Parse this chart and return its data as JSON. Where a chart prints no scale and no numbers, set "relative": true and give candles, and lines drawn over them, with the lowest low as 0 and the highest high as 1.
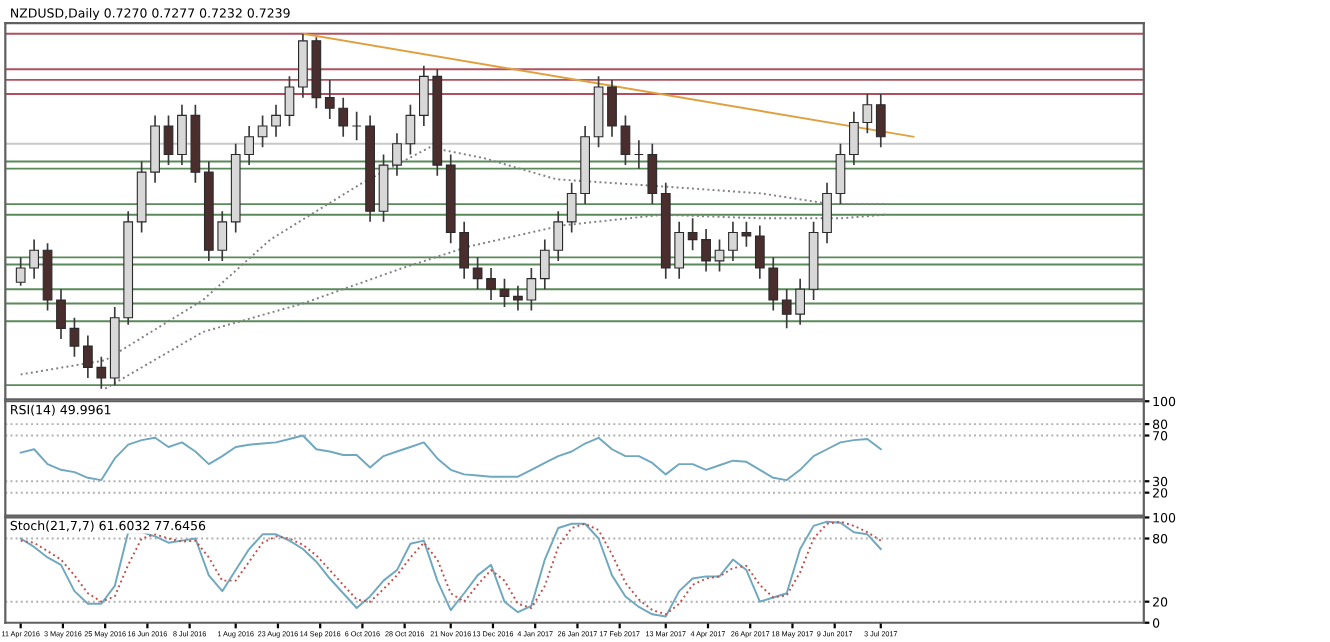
{
  "chart_data": [
    {
      "type": "candlestick",
      "title": "NZDUSD,Daily 0.7270 0.7277 0.7232 0.7239",
      "relative": true,
      "tick_labels": false,
      "x": [
        "2016-04-11",
        "2016-04-18",
        "2016-04-25",
        "2016-05-02",
        "2016-05-09",
        "2016-05-16",
        "2016-05-23",
        "2016-05-30",
        "2016-06-06",
        "2016-06-13",
        "2016-06-20",
        "2016-06-27",
        "2016-07-04",
        "2016-07-11",
        "2016-07-18",
        "2016-07-25",
        "2016-08-01",
        "2016-08-08",
        "2016-08-15",
        "2016-08-22",
        "2016-08-29",
        "2016-09-05",
        "2016-09-12",
        "2016-09-19",
        "2016-09-26",
        "2016-10-03",
        "2016-10-10",
        "2016-10-17",
        "2016-10-24",
        "2016-10-31",
        "2016-11-07",
        "2016-11-14",
        "2016-11-21",
        "2016-11-28",
        "2016-12-05",
        "2016-12-12",
        "2016-12-19",
        "2016-12-26",
        "2017-01-02",
        "2017-01-09",
        "2017-01-16",
        "2017-01-23",
        "2017-01-30",
        "2017-02-06",
        "2017-02-13",
        "2017-02-20",
        "2017-02-27",
        "2017-03-06",
        "2017-03-13",
        "2017-03-20",
        "2017-03-27",
        "2017-04-03",
        "2017-04-10",
        "2017-04-17",
        "2017-04-24",
        "2017-05-01",
        "2017-05-08",
        "2017-05-15",
        "2017-05-22",
        "2017-05-29",
        "2017-06-05",
        "2017-06-12",
        "2017-06-19",
        "2017-06-26",
        "2017-07-03"
      ],
      "ohlc": [
        [
          0.3,
          0.37,
          0.29,
          0.34
        ],
        [
          0.34,
          0.42,
          0.31,
          0.39
        ],
        [
          0.39,
          0.41,
          0.22,
          0.25
        ],
        [
          0.25,
          0.28,
          0.14,
          0.17
        ],
        [
          0.17,
          0.2,
          0.09,
          0.12
        ],
        [
          0.12,
          0.15,
          0.03,
          0.06
        ],
        [
          0.06,
          0.09,
          0.0,
          0.03
        ],
        [
          0.03,
          0.23,
          0.01,
          0.2
        ],
        [
          0.2,
          0.5,
          0.18,
          0.47
        ],
        [
          0.47,
          0.64,
          0.44,
          0.61
        ],
        [
          0.61,
          0.77,
          0.58,
          0.74
        ],
        [
          0.74,
          0.77,
          0.63,
          0.66
        ],
        [
          0.66,
          0.8,
          0.63,
          0.77
        ],
        [
          0.77,
          0.8,
          0.58,
          0.61
        ],
        [
          0.61,
          0.64,
          0.36,
          0.39
        ],
        [
          0.39,
          0.5,
          0.36,
          0.47
        ],
        [
          0.47,
          0.69,
          0.44,
          0.66
        ],
        [
          0.66,
          0.74,
          0.63,
          0.71
        ],
        [
          0.71,
          0.77,
          0.68,
          0.74
        ],
        [
          0.74,
          0.8,
          0.71,
          0.77
        ],
        [
          0.77,
          0.88,
          0.74,
          0.85
        ],
        [
          0.85,
          1.0,
          0.82,
          0.98
        ],
        [
          0.98,
          0.99,
          0.79,
          0.82
        ],
        [
          0.82,
          0.87,
          0.76,
          0.79
        ],
        [
          0.79,
          0.82,
          0.71,
          0.74
        ],
        [
          0.74,
          0.78,
          0.7,
          0.74
        ],
        [
          0.74,
          0.77,
          0.47,
          0.5
        ],
        [
          0.5,
          0.66,
          0.47,
          0.63
        ],
        [
          0.63,
          0.72,
          0.6,
          0.69
        ],
        [
          0.69,
          0.8,
          0.66,
          0.77
        ],
        [
          0.77,
          0.91,
          0.74,
          0.88
        ],
        [
          0.88,
          0.9,
          0.6,
          0.63
        ],
        [
          0.63,
          0.66,
          0.41,
          0.44
        ],
        [
          0.44,
          0.47,
          0.31,
          0.34
        ],
        [
          0.34,
          0.37,
          0.28,
          0.31
        ],
        [
          0.31,
          0.34,
          0.25,
          0.28
        ],
        [
          0.28,
          0.31,
          0.23,
          0.26
        ],
        [
          0.26,
          0.29,
          0.22,
          0.25
        ],
        [
          0.25,
          0.34,
          0.22,
          0.31
        ],
        [
          0.31,
          0.42,
          0.28,
          0.39
        ],
        [
          0.39,
          0.5,
          0.36,
          0.47
        ],
        [
          0.47,
          0.58,
          0.44,
          0.55
        ],
        [
          0.55,
          0.74,
          0.52,
          0.71
        ],
        [
          0.71,
          0.88,
          0.68,
          0.85
        ],
        [
          0.85,
          0.87,
          0.71,
          0.74
        ],
        [
          0.74,
          0.77,
          0.63,
          0.66
        ],
        [
          0.66,
          0.7,
          0.62,
          0.66
        ],
        [
          0.66,
          0.69,
          0.52,
          0.55
        ],
        [
          0.55,
          0.58,
          0.31,
          0.34
        ],
        [
          0.34,
          0.47,
          0.31,
          0.44
        ],
        [
          0.44,
          0.48,
          0.39,
          0.42
        ],
        [
          0.42,
          0.45,
          0.33,
          0.36
        ],
        [
          0.36,
          0.42,
          0.33,
          0.39
        ],
        [
          0.39,
          0.47,
          0.36,
          0.44
        ],
        [
          0.44,
          0.47,
          0.4,
          0.43
        ],
        [
          0.43,
          0.46,
          0.31,
          0.34
        ],
        [
          0.34,
          0.37,
          0.22,
          0.25
        ],
        [
          0.25,
          0.28,
          0.17,
          0.21
        ],
        [
          0.21,
          0.31,
          0.18,
          0.28
        ],
        [
          0.28,
          0.47,
          0.25,
          0.44
        ],
        [
          0.44,
          0.58,
          0.41,
          0.55
        ],
        [
          0.55,
          0.69,
          0.52,
          0.66
        ],
        [
          0.66,
          0.78,
          0.63,
          0.75
        ],
        [
          0.75,
          0.83,
          0.72,
          0.8
        ],
        [
          0.8,
          0.83,
          0.68,
          0.71
        ]
      ],
      "series": [
        {
          "type": "line",
          "color": "#808080",
          "line_style": "dotted",
          "x": [
            "2016-04-11",
            "2016-05-25",
            "2016-07-15",
            "2016-08-19",
            "2016-10-06",
            "2016-11-10",
            "2016-12-08",
            "2017-01-15",
            "2017-03-11",
            "2017-05-02",
            "2017-06-07",
            "2017-07-05"
          ],
          "values": [
            0.04,
            0.08,
            0.25,
            0.42,
            0.58,
            0.68,
            0.65,
            0.59,
            0.57,
            0.55,
            0.52,
            0.52
          ]
        },
        {
          "type": "line",
          "color": "#808080",
          "line_style": "dotted",
          "x": [
            "2016-05-25",
            "2016-07-15",
            "2016-09-05",
            "2016-10-27",
            "2016-11-30",
            "2017-01-18",
            "2017-03-11",
            "2017-05-02",
            "2017-06-12",
            "2017-07-05"
          ],
          "values": [
            0.0,
            0.16,
            0.24,
            0.34,
            0.4,
            0.46,
            0.49,
            0.48,
            0.48,
            0.49
          ]
        },
        {
          "type": "line",
          "color": "#e0a040",
          "line_style": "solid",
          "x": [
            "2016-09-05",
            "2017-07-20"
          ],
          "values": [
            1.0,
            0.71
          ]
        }
      ],
      "ref_lines": [
        {
          "axis": "y",
          "value": 1.0,
          "color": "#b0505f"
        },
        {
          "axis": "y",
          "value": 0.9,
          "color": "#b0505f"
        },
        {
          "axis": "y",
          "value": 0.87,
          "color": "#b0505f"
        },
        {
          "axis": "y",
          "value": 0.83,
          "color": "#b0505f"
        },
        {
          "axis": "y",
          "value": 0.69,
          "color": "#c8c8c8"
        },
        {
          "axis": "y",
          "value": 0.64,
          "color": "#5a8a5a"
        },
        {
          "axis": "y",
          "value": 0.62,
          "color": "#5a8a5a"
        },
        {
          "axis": "y",
          "value": 0.52,
          "color": "#5a8a5a"
        },
        {
          "axis": "y",
          "value": 0.49,
          "color": "#5a8a5a"
        },
        {
          "axis": "y",
          "value": 0.37,
          "color": "#5a8a5a"
        },
        {
          "axis": "y",
          "value": 0.35,
          "color": "#5a8a5a"
        },
        {
          "axis": "y",
          "value": 0.28,
          "color": "#5a8a5a"
        },
        {
          "axis": "y",
          "value": 0.24,
          "color": "#5a8a5a"
        },
        {
          "axis": "y",
          "value": 0.19,
          "color": "#5a8a5a"
        },
        {
          "axis": "y",
          "value": 0.01,
          "color": "#5a8a5a"
        }
      ],
      "xlim": [
        "2016-04-03",
        "2017-11-17"
      ]
    },
    {
      "type": "line",
      "title": "RSI(14) 49.9961",
      "tick_labels": "y",
      "xlim": [
        "2016-04-03",
        "2017-11-17"
      ],
      "ylim": [
        0,
        100
      ],
      "yticks": [
        20,
        30,
        70,
        80,
        100
      ],
      "x": [
        "2016-04-11",
        "2016-04-18",
        "2016-04-25",
        "2016-05-02",
        "2016-05-09",
        "2016-05-16",
        "2016-05-23",
        "2016-05-30",
        "2016-06-06",
        "2016-06-13",
        "2016-06-20",
        "2016-06-27",
        "2016-07-04",
        "2016-07-11",
        "2016-07-18",
        "2016-07-25",
        "2016-08-01",
        "2016-08-08",
        "2016-08-15",
        "2016-08-22",
        "2016-08-29",
        "2016-09-05",
        "2016-09-12",
        "2016-09-19",
        "2016-09-26",
        "2016-10-03",
        "2016-10-10",
        "2016-10-17",
        "2016-10-24",
        "2016-10-31",
        "2016-11-07",
        "2016-11-14",
        "2016-11-21",
        "2016-11-28",
        "2016-12-05",
        "2016-12-12",
        "2016-12-19",
        "2016-12-26",
        "2017-01-02",
        "2017-01-09",
        "2017-01-16",
        "2017-01-23",
        "2017-01-30",
        "2017-02-06",
        "2017-02-13",
        "2017-02-20",
        "2017-02-27",
        "2017-03-06",
        "2017-03-13",
        "2017-03-20",
        "2017-03-27",
        "2017-04-03",
        "2017-04-10",
        "2017-04-17",
        "2017-04-24",
        "2017-05-01",
        "2017-05-08",
        "2017-05-15",
        "2017-05-22",
        "2017-05-29",
        "2017-06-05",
        "2017-06-12",
        "2017-06-19",
        "2017-06-26",
        "2017-07-03"
      ],
      "series": [
        {
          "color": "#6fa8bf",
          "line_style": "solid",
          "values": [
            55,
            58,
            45,
            40,
            38,
            33,
            31,
            50,
            62,
            66,
            68,
            60,
            64,
            56,
            45,
            52,
            60,
            62,
            63,
            64,
            67,
            70,
            58,
            56,
            53,
            53,
            42,
            52,
            56,
            60,
            64,
            50,
            40,
            36,
            35,
            34,
            34,
            34,
            40,
            46,
            52,
            56,
            63,
            68,
            58,
            52,
            52,
            46,
            36,
            45,
            45,
            40,
            44,
            48,
            47,
            40,
            33,
            31,
            40,
            52,
            58,
            64,
            66,
            67,
            58
          ]
        }
      ],
      "ref_lines": [
        {
          "axis": "y",
          "value": 20,
          "color": "#b0b0b0",
          "line_style": "dotted"
        },
        {
          "axis": "y",
          "value": 30,
          "color": "#b0b0b0",
          "line_style": "dotted"
        },
        {
          "axis": "y",
          "value": 70,
          "color": "#b0b0b0",
          "line_style": "dotted"
        },
        {
          "axis": "y",
          "value": 80,
          "color": "#b0b0b0",
          "line_style": "dotted"
        }
      ]
    },
    {
      "type": "line",
      "title": "Stoch(21,7,7) 61.6032 77.6456",
      "xlim": [
        "2016-04-03",
        "2017-11-17"
      ],
      "ylim": [
        0,
        100
      ],
      "yticks": [
        0,
        20,
        80,
        100
      ],
      "xticks": [
        {
          "value": "2016-04-11",
          "label": "11 Apr 2016"
        },
        {
          "value": "2016-05-03",
          "label": "3 May 2016"
        },
        {
          "value": "2016-05-25",
          "label": "25 May 2016"
        },
        {
          "value": "2016-06-16",
          "label": "16 Jun 2016"
        },
        {
          "value": "2016-07-08",
          "label": "8 Jul 2016"
        },
        {
          "value": "2016-08-01",
          "label": "1 Aug 2016"
        },
        {
          "value": "2016-08-23",
          "label": "23 Aug 2016"
        },
        {
          "value": "2016-09-14",
          "label": "14 Sep 2016"
        },
        {
          "value": "2016-10-06",
          "label": "6 Oct 2016"
        },
        {
          "value": "2016-10-28",
          "label": "28 Oct 2016"
        },
        {
          "value": "2016-11-21",
          "label": "21 Nov 2016"
        },
        {
          "value": "2016-12-13",
          "label": "13 Dec 2016"
        },
        {
          "value": "2017-01-04",
          "label": "4 Jan 2017"
        },
        {
          "value": "2017-01-26",
          "label": "26 Jan 2017"
        },
        {
          "value": "2017-02-17",
          "label": "17 Feb 2017"
        },
        {
          "value": "2017-03-13",
          "label": "13 Mar 2017"
        },
        {
          "value": "2017-04-04",
          "label": "4 Apr 2017"
        },
        {
          "value": "2017-04-26",
          "label": "26 Apr 2017"
        },
        {
          "value": "2017-05-18",
          "label": "18 May 2017"
        },
        {
          "value": "2017-06-09",
          "label": "9 Jun 2017"
        },
        {
          "value": "2017-07-03",
          "label": "3 Jul 2017"
        }
      ],
      "x": [
        "2016-04-11",
        "2016-04-18",
        "2016-04-25",
        "2016-05-02",
        "2016-05-09",
        "2016-05-16",
        "2016-05-23",
        "2016-05-30",
        "2016-06-06",
        "2016-06-13",
        "2016-06-20",
        "2016-06-27",
        "2016-07-04",
        "2016-07-11",
        "2016-07-18",
        "2016-07-25",
        "2016-08-01",
        "2016-08-08",
        "2016-08-15",
        "2016-08-22",
        "2016-08-29",
        "2016-09-05",
        "2016-09-12",
        "2016-09-19",
        "2016-09-26",
        "2016-10-03",
        "2016-10-10",
        "2016-10-17",
        "2016-10-24",
        "2016-10-31",
        "2016-11-07",
        "2016-11-14",
        "2016-11-21",
        "2016-11-28",
        "2016-12-05",
        "2016-12-12",
        "2016-12-19",
        "2016-12-26",
        "2017-01-02",
        "2017-01-09",
        "2017-01-16",
        "2017-01-23",
        "2017-01-30",
        "2017-02-06",
        "2017-02-13",
        "2017-02-20",
        "2017-02-27",
        "2017-03-06",
        "2017-03-13",
        "2017-03-20",
        "2017-03-27",
        "2017-04-03",
        "2017-04-10",
        "2017-04-17",
        "2017-04-24",
        "2017-05-01",
        "2017-05-08",
        "2017-05-15",
        "2017-05-22",
        "2017-05-29",
        "2017-06-05",
        "2017-06-12",
        "2017-06-19",
        "2017-06-26",
        "2017-07-03"
      ],
      "series": [
        {
          "color": "#6fa8bf",
          "line_style": "solid",
          "values": [
            80,
            72,
            62,
            55,
            30,
            18,
            18,
            35,
            86,
            86,
            82,
            76,
            78,
            80,
            45,
            30,
            50,
            70,
            84,
            84,
            78,
            70,
            58,
            42,
            28,
            14,
            25,
            40,
            50,
            75,
            78,
            40,
            12,
            28,
            45,
            55,
            20,
            10,
            16,
            60,
            90,
            94,
            94,
            80,
            45,
            25,
            15,
            8,
            6,
            30,
            42,
            44,
            44,
            60,
            50,
            20,
            24,
            28,
            70,
            92,
            96,
            95,
            86,
            84,
            70
          ]
        },
        {
          "color": "#c0504d",
          "line_style": "dotted",
          "values": [
            78,
            76,
            68,
            60,
            45,
            28,
            20,
            25,
            55,
            80,
            84,
            80,
            77,
            78,
            62,
            40,
            40,
            58,
            76,
            82,
            80,
            74,
            64,
            50,
            36,
            22,
            20,
            32,
            45,
            62,
            76,
            60,
            28,
            20,
            36,
            50,
            40,
            18,
            14,
            35,
            72,
            90,
            94,
            88,
            65,
            38,
            22,
            12,
            8,
            18,
            36,
            42,
            44,
            52,
            54,
            36,
            24,
            26,
            48,
            80,
            94,
            96,
            92,
            86,
            78
          ]
        }
      ],
      "ref_lines": [
        {
          "axis": "y",
          "value": 20,
          "color": "#b0b0b0",
          "line_style": "dotted"
        },
        {
          "axis": "y",
          "value": 80,
          "color": "#b0b0b0",
          "line_style": "dotted"
        }
      ]
    }
  ]
}
